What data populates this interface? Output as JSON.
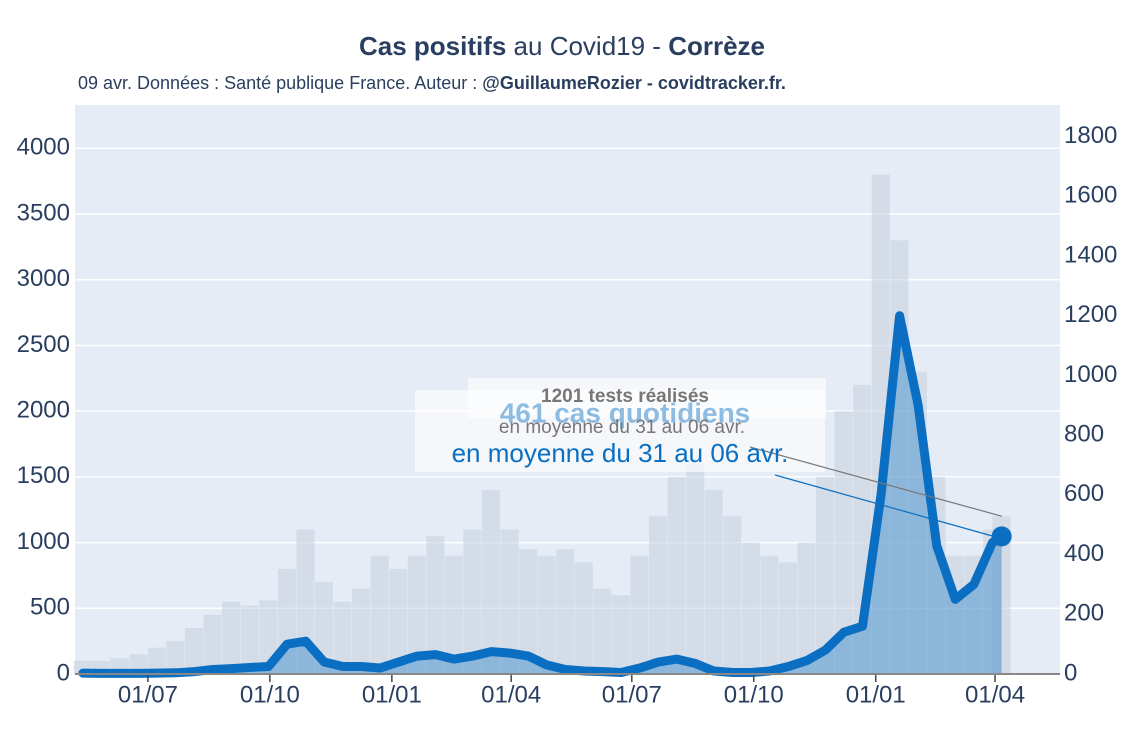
{
  "chart_data": {
    "type": "combo",
    "title": [
      {
        "text": "Cas positifs",
        "bold": true
      },
      {
        "text": " au Covid19 - ",
        "bold": false
      },
      {
        "text": "Corrèze",
        "bold": true
      }
    ],
    "subtitle": [
      {
        "text": "09 avr. Données : Santé publique France. Auteur : ",
        "bold": false
      },
      {
        "text": "@GuillaumeRozier - covidtracker.fr.",
        "bold": true
      }
    ],
    "x": [
      -49,
      -35,
      -21,
      -7,
      7,
      21,
      35,
      49,
      63,
      77,
      91,
      105,
      119,
      133,
      147,
      161,
      175,
      189,
      203,
      217,
      231,
      245,
      259,
      273,
      287,
      301,
      315,
      329,
      343,
      357,
      371,
      385,
      399,
      413,
      427,
      441,
      455,
      469,
      483,
      497,
      511,
      525,
      539,
      553,
      567,
      581,
      595,
      609,
      623,
      637,
      644
    ],
    "xlim": [
      -55,
      688
    ],
    "xticks": [
      {
        "value": 0,
        "label": "01/07"
      },
      {
        "value": 92,
        "label": "01/10"
      },
      {
        "value": 184,
        "label": "01/01"
      },
      {
        "value": 274,
        "label": "01/04"
      },
      {
        "value": 365,
        "label": "01/07"
      },
      {
        "value": 457,
        "label": "01/10"
      },
      {
        "value": 549,
        "label": "01/01"
      },
      {
        "value": 639,
        "label": "01/04"
      }
    ],
    "ylim": [
      0,
      4330
    ],
    "yticks": [
      0,
      500,
      1000,
      1500,
      2000,
      2500,
      3000,
      3500,
      4000
    ],
    "y2lim": [
      0,
      1906
    ],
    "y2ticks": [
      0,
      200,
      400,
      600,
      800,
      1000,
      1200,
      1400,
      1600,
      1800
    ],
    "grid": true,
    "series": [
      {
        "type": "bar",
        "axis": "y",
        "color": "#c8d2e0",
        "values": [
          100,
          100,
          120,
          150,
          200,
          250,
          350,
          450,
          550,
          520,
          560,
          800,
          1100,
          700,
          550,
          650,
          900,
          800,
          900,
          1050,
          900,
          1100,
          1400,
          1100,
          950,
          900,
          950,
          850,
          650,
          600,
          900,
          1200,
          1500,
          1600,
          1400,
          1200,
          1000,
          900,
          850,
          1000,
          1500,
          2000,
          2200,
          3800,
          3300,
          2300,
          1500,
          900,
          900,
          1100,
          1201
        ]
      },
      {
        "type": "line",
        "axis": "y2",
        "color": "#0a6fc2",
        "values": [
          3,
          2,
          2,
          2,
          3,
          4,
          8,
          15,
          18,
          22,
          25,
          100,
          110,
          40,
          25,
          25,
          20,
          40,
          60,
          65,
          50,
          60,
          75,
          70,
          60,
          30,
          15,
          10,
          8,
          5,
          20,
          40,
          50,
          35,
          10,
          5,
          5,
          10,
          25,
          45,
          80,
          140,
          160,
          600,
          1200,
          900,
          430,
          250,
          300,
          440,
          461
        ]
      }
    ],
    "annotations": [
      {
        "color": "#777777",
        "lines": [
          "1201 tests réalisés",
          "en moyenne du 31 au 06 avr."
        ]
      },
      {
        "color": "#0a6fc2",
        "lines": [
          "461 cas quotidiens",
          "en moyenne du 31 au 06 avr."
        ]
      }
    ]
  }
}
